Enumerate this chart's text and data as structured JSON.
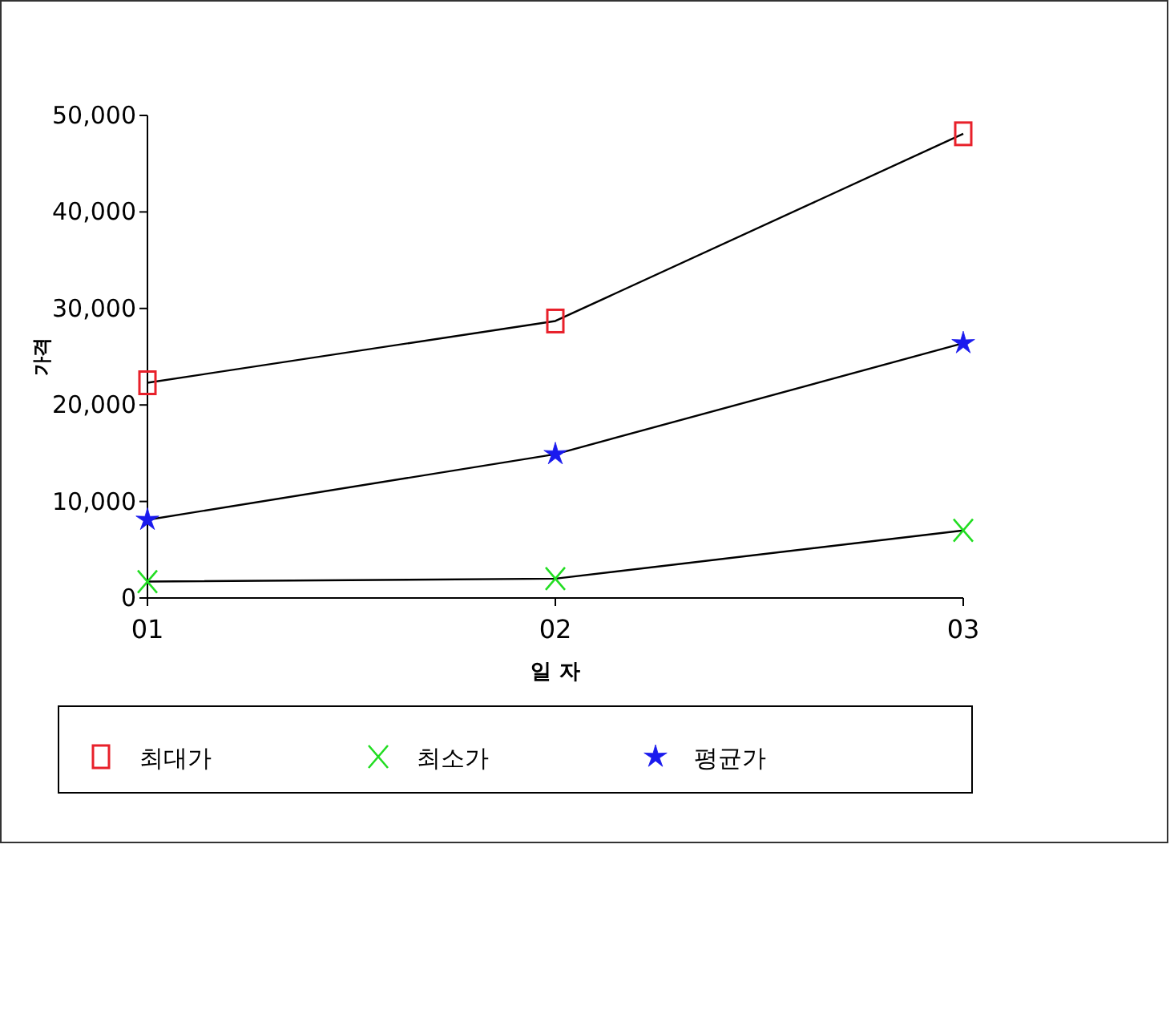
{
  "chart_data": {
    "type": "line",
    "xlabel": "일 자",
    "ylabel": "가격",
    "categories": [
      "01",
      "02",
      "03"
    ],
    "series": [
      {
        "name": "최대가",
        "color": "#e8202a",
        "marker": "square",
        "values": [
          22300,
          28700,
          48100
        ]
      },
      {
        "name": "최소가",
        "color": "#22dd22",
        "marker": "cross",
        "values": [
          1700,
          2000,
          7000
        ]
      },
      {
        "name": "평균가",
        "color": "#1a1aee",
        "marker": "star",
        "values": [
          8100,
          14900,
          26400
        ]
      }
    ],
    "ylim": [
      0,
      50000
    ],
    "yticks": [
      {
        "value": 0,
        "label": "0"
      },
      {
        "value": 10000,
        "label": "10,000"
      },
      {
        "value": 20000,
        "label": "20,000"
      },
      {
        "value": 30000,
        "label": "30,000"
      },
      {
        "value": 40000,
        "label": "40,000"
      },
      {
        "value": 50000,
        "label": "50,000"
      }
    ],
    "grid": false,
    "legend": "bottom"
  }
}
